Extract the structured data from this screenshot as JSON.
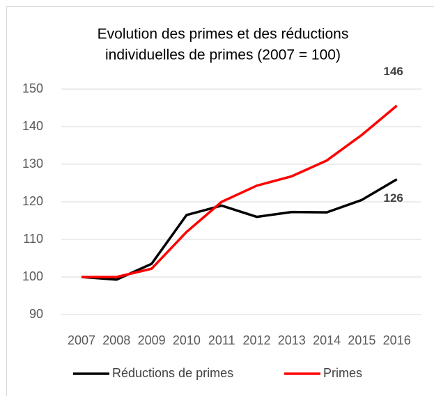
{
  "chart_data": {
    "type": "line",
    "title": [
      "Evolution des primes et des réductions",
      "individuelles de primes (2007 = 100)"
    ],
    "categories": [
      "2007",
      "2008",
      "2009",
      "2010",
      "2011",
      "2012",
      "2013",
      "2014",
      "2015",
      "2016"
    ],
    "series": [
      {
        "name": "Réductions de primes",
        "color": "#000000",
        "values": [
          100,
          99.3,
          103.5,
          116.5,
          119,
          116,
          117.3,
          117.2,
          120.5,
          126
        ],
        "value_labels": [
          null,
          null,
          null,
          null,
          null,
          null,
          null,
          null,
          null,
          "126"
        ]
      },
      {
        "name": "Primes",
        "color": "#ff0000",
        "values": [
          100,
          100,
          102.2,
          112,
          120,
          124.3,
          126.8,
          131,
          137.8,
          145.6
        ],
        "value_labels": [
          null,
          null,
          null,
          null,
          null,
          null,
          null,
          null,
          null,
          "146"
        ]
      }
    ],
    "ylim": [
      90,
      150
    ],
    "yticks": [
      90,
      100,
      110,
      120,
      130,
      140,
      150
    ],
    "grid": true,
    "legend": "bottom"
  }
}
